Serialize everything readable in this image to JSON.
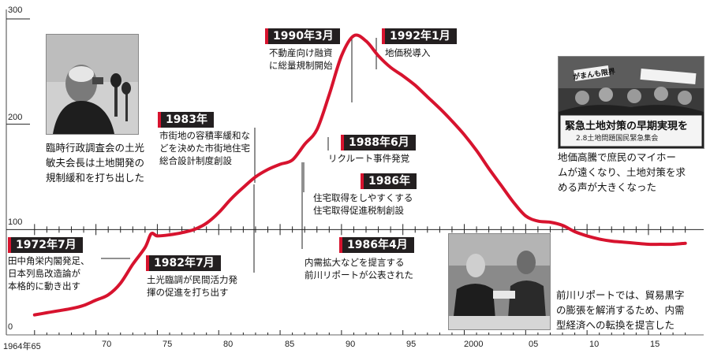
{
  "chart_data": {
    "type": "line",
    "x_tick_labels": [
      "1964年65",
      "70",
      "75",
      "80",
      "85",
      "90",
      "95",
      "2000",
      "05",
      "10",
      "15"
    ],
    "x_tick_values": [
      1965,
      1970,
      1975,
      1980,
      1985,
      1990,
      1995,
      2000,
      2005,
      2010,
      2015
    ],
    "y_tick_labels": [
      "0",
      "100",
      "200",
      "300"
    ],
    "y_tick_values": [
      0,
      100,
      200,
      300
    ],
    "xlim": [
      1962.7,
      2019.5
    ],
    "ylim": [
      0,
      300
    ],
    "x": [
      1965,
      1966,
      1967,
      1968,
      1969,
      1970,
      1971,
      1972,
      1973,
      1974,
      1974.5,
      1975,
      1976,
      1977,
      1978,
      1979,
      1980,
      1981,
      1982,
      1983,
      1984,
      1985,
      1986,
      1987,
      1988,
      1989,
      1990,
      1991,
      1992,
      1993,
      1994,
      1995,
      1996,
      1997,
      1998,
      1999,
      2000,
      2001,
      2002,
      2003,
      2004,
      2005,
      2006,
      2007,
      2008,
      2009,
      2010,
      2011,
      2012,
      2013,
      2014,
      2015,
      2016,
      2017,
      2018
    ],
    "y": [
      19,
      21,
      23,
      25,
      28,
      33,
      38,
      49,
      67,
      83,
      96,
      94,
      95,
      97,
      100,
      106,
      116,
      129,
      140,
      150,
      157,
      162,
      166,
      181,
      195,
      228,
      265,
      284,
      279,
      265,
      254,
      246,
      237,
      226,
      215,
      203,
      190,
      175,
      158,
      142,
      126,
      113,
      108,
      107,
      104,
      98,
      94,
      91,
      89,
      88,
      87,
      86,
      86,
      86,
      87
    ],
    "line_color": "#d7132e",
    "grid": false
  },
  "events": [
    {
      "tag": "1972年7月",
      "text": "田中角栄内閣発足、\n日本列島改造論が\n本格的に動き出す"
    },
    {
      "tag": "1982年7月",
      "text": "土光臨調が民間活力発\n揮の促進を打ち出す"
    },
    {
      "tag": "1983年",
      "text": "市街地の容積率緩和な\nどを決めた市街地住宅\n総合設計制度創設"
    },
    {
      "tag": "1986年4月",
      "text": "内需拡大などを提言する\n前川リポートが公表された"
    },
    {
      "tag": "1986年",
      "text": "住宅取得をしやすくする\n住宅取得促進税制創設"
    },
    {
      "tag": "1988年6月",
      "text": "リクルート事件発覚"
    },
    {
      "tag": "1990年3月",
      "text": "不動産向け融資\nに総量規制開始"
    },
    {
      "tag": "1992年1月",
      "text": "地価税導入"
    }
  ],
  "captions": {
    "doko": "臨時行政調査会の土光\n敏夫会長は土地開発の\n規制緩和を打ち出した",
    "protest": "地価高騰で庶民のマイホー\nムが遠くなり、土地対策を求\nめる声が大きくなった",
    "maekawa": "前川リポートでは、貿易黒字\nの膨張を解消するため、内需\n型経済への転換を提言した"
  },
  "banner": {
    "line1": "緊急土地対策の早期実現を",
    "line2": "2.8土地問題国民緊急集会",
    "line3": "がまんも限界"
  }
}
